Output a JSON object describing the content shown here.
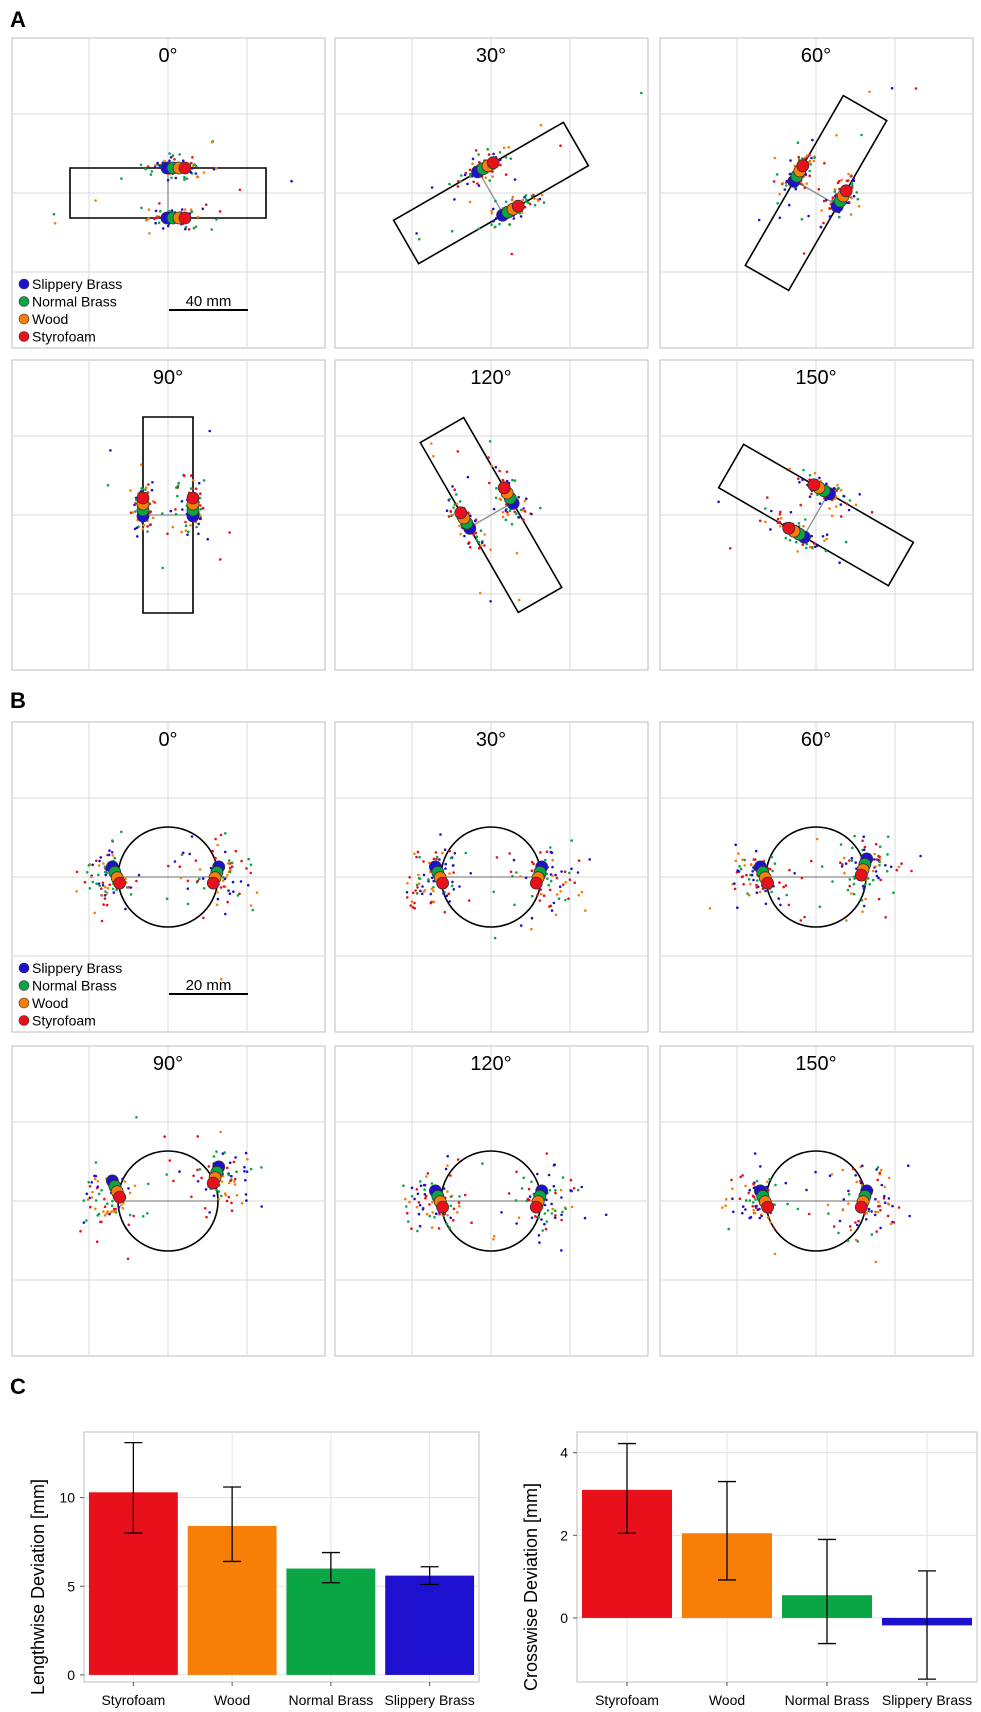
{
  "colors": {
    "Styrofoam": "#e8101a",
    "Wood": "#f77f08",
    "Normal Brass": "#0aa545",
    "Slippery Brass": "#1e10cf"
  },
  "panels": {
    "A": {
      "letter": "A",
      "shape": "rectangle",
      "scale_label": "40 mm",
      "angles": [
        "0°",
        "30°",
        "60°",
        "90°",
        "120°",
        "150°"
      ]
    },
    "B": {
      "letter": "B",
      "shape": "circle",
      "scale_label": "20 mm",
      "angles": [
        "0°",
        "30°",
        "60°",
        "90°",
        "120°",
        "150°"
      ]
    },
    "C": {
      "letter": "C"
    }
  },
  "legend": [
    "Slippery Brass",
    "Normal Brass",
    "Wood",
    "Styrofoam"
  ],
  "chart_data": [
    {
      "type": "bar",
      "ylabel": "Lengthwise  Deviation [mm]",
      "categories": [
        "Styrofoam",
        "Wood",
        "Normal Brass",
        "Slippery Brass"
      ],
      "values": [
        10.3,
        8.4,
        6.0,
        5.6
      ],
      "error_low": [
        8.0,
        6.4,
        5.2,
        5.1
      ],
      "error_high": [
        13.1,
        10.6,
        6.9,
        6.1
      ],
      "yticks": [
        0,
        5,
        10
      ],
      "ylim": [
        -0.4,
        13.7
      ]
    },
    {
      "type": "bar",
      "ylabel": "Crosswise  Deviation [mm]",
      "categories": [
        "Styrofoam",
        "Wood",
        "Normal Brass",
        "Slippery Brass"
      ],
      "values": [
        3.1,
        2.05,
        0.55,
        -0.18
      ],
      "error_low": [
        2.05,
        0.92,
        -0.62,
        -1.48
      ],
      "error_high": [
        4.22,
        3.3,
        1.9,
        1.14
      ],
      "yticks": [
        0,
        2,
        4
      ],
      "ylim": [
        -1.55,
        4.5
      ]
    }
  ]
}
